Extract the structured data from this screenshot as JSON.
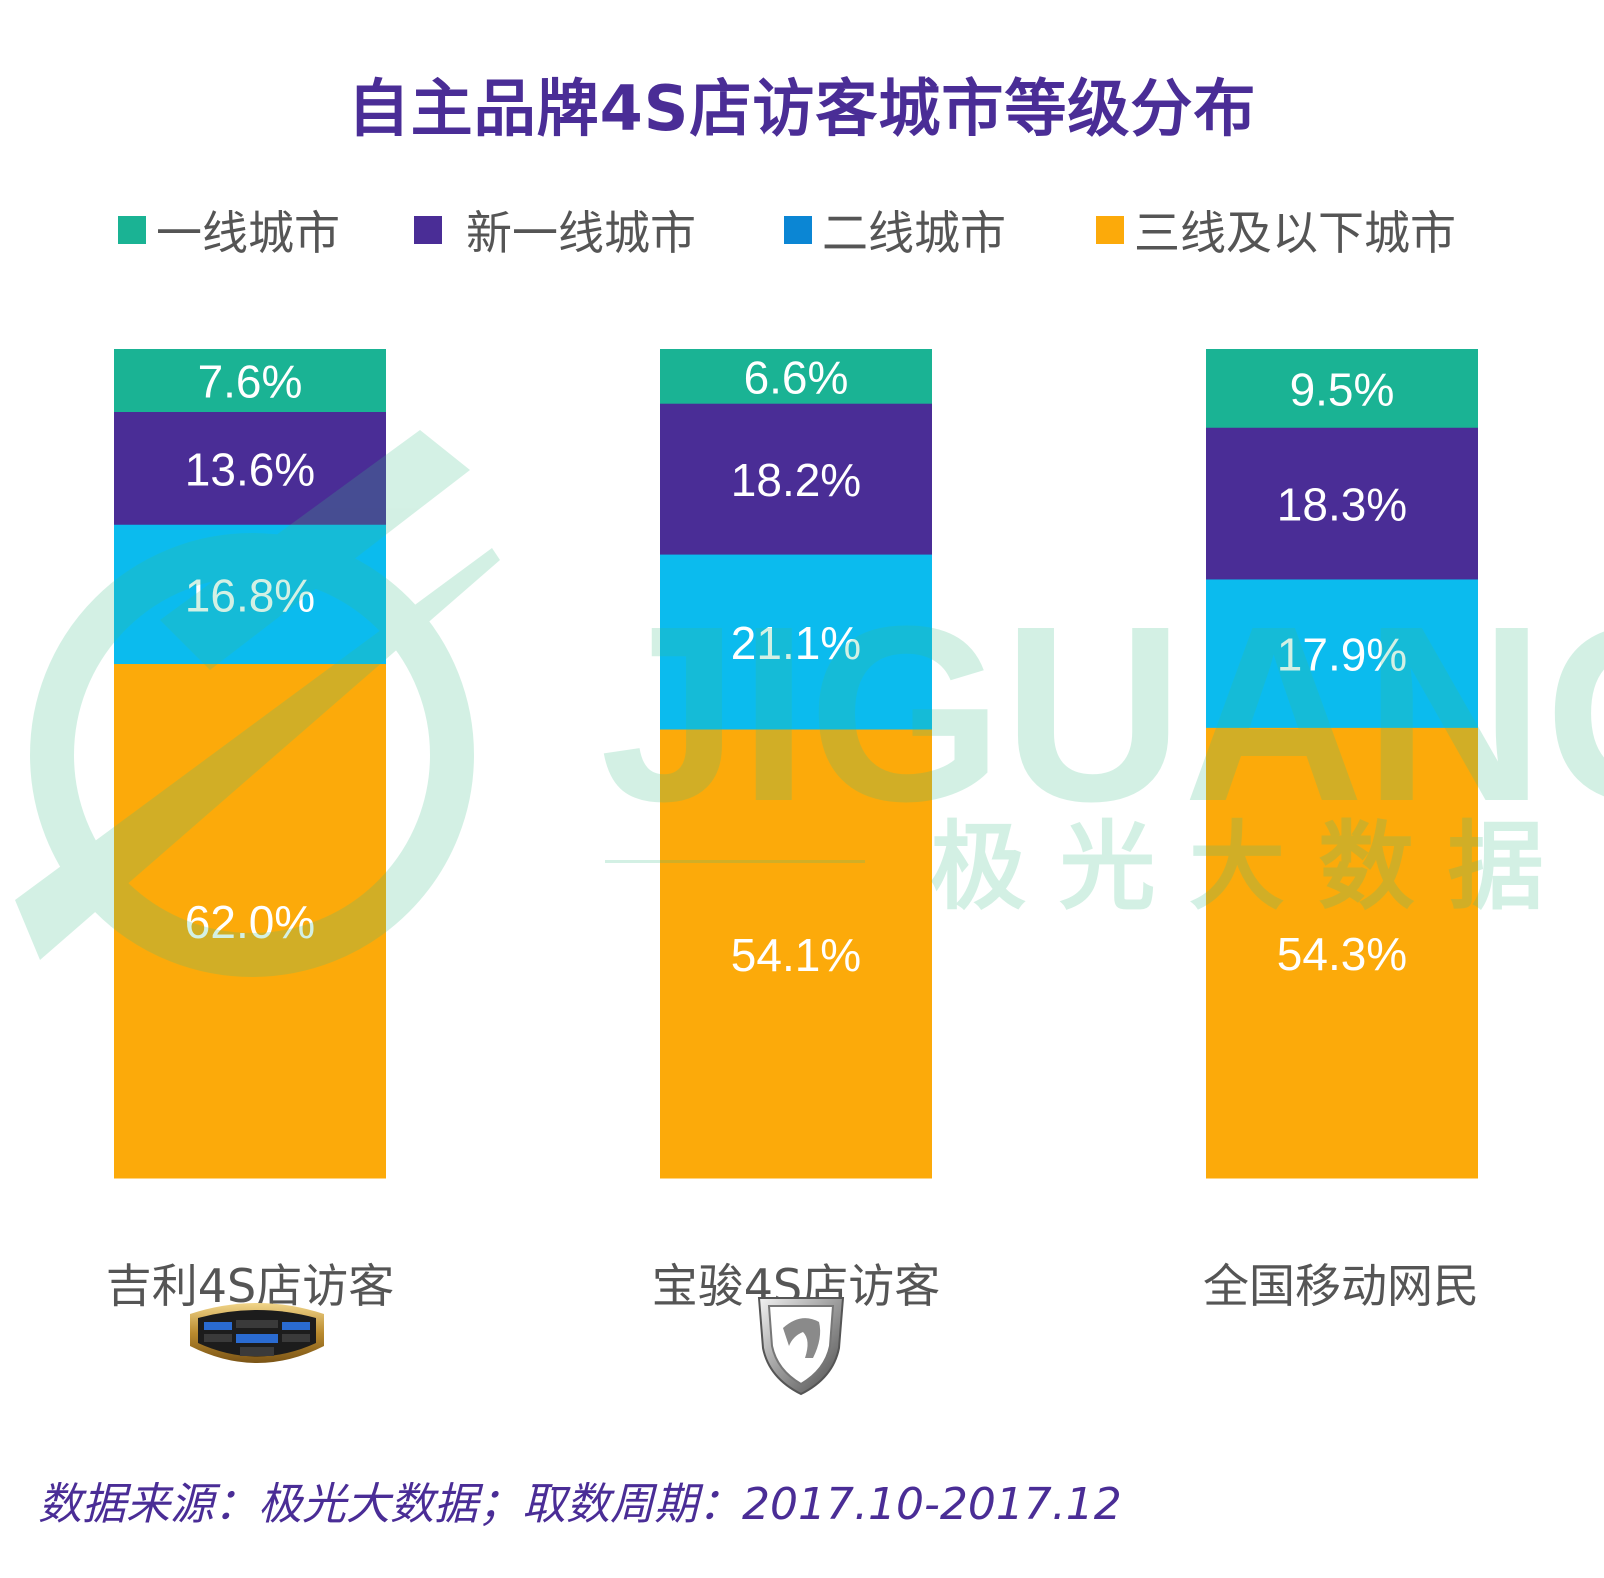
{
  "title": "自主品牌4S店访客城市等级分布",
  "source": "数据来源：极光大数据；取数周期：2017.10-2017.12",
  "watermark": {
    "wordmark": "JIGUANG",
    "cn": "极 光 大 数 据"
  },
  "colors": {
    "tier1": "#1ab394",
    "newtier1": "#4a2d96",
    "tier2": "#0bbbee",
    "tier3": "#fcaa0a",
    "title": "#4a2d96"
  },
  "logos": {
    "geely": "geely-logo",
    "baojun": "baojun-logo"
  },
  "chart_data": {
    "type": "bar",
    "stacked": true,
    "percent_stacked": true,
    "legend_position": "top",
    "grid": false,
    "categories": [
      "吉利4S店访客",
      "宝骏4S店访客",
      "全国移动网民"
    ],
    "series": [
      {
        "name": "一线城市",
        "color": "#1ab394",
        "values": [
          7.6,
          6.6,
          9.5
        ],
        "labels": [
          "7.6%",
          "6.6%",
          "9.5%"
        ]
      },
      {
        "name": "新一线城市",
        "color": "#4a2d96",
        "values": [
          13.6,
          18.2,
          18.3
        ],
        "labels": [
          "13.6%",
          "18.2%",
          "18.3%"
        ]
      },
      {
        "name": "二线城市",
        "color": "#0bbbee",
        "values": [
          16.8,
          21.1,
          17.9
        ],
        "labels": [
          "16.8%",
          "21.1%",
          "17.9%"
        ]
      },
      {
        "name": "三线及以下城市",
        "color": "#fcaa0a",
        "values": [
          62.0,
          54.1,
          54.3
        ],
        "labels": [
          "62.0%",
          "54.1%",
          "54.3%"
        ]
      }
    ]
  }
}
